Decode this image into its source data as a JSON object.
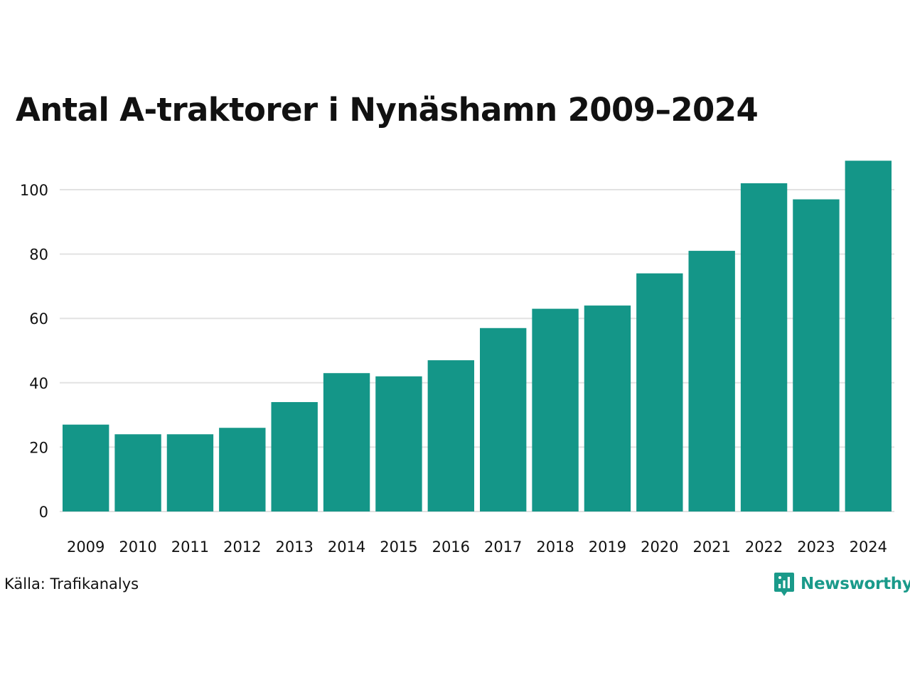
{
  "chart_data": {
    "type": "bar",
    "title": "Antal A-traktorer i Nynäshamn 2009–2024",
    "categories": [
      "2009",
      "2010",
      "2011",
      "2012",
      "2013",
      "2014",
      "2015",
      "2016",
      "2017",
      "2018",
      "2019",
      "2020",
      "2021",
      "2022",
      "2023",
      "2024"
    ],
    "values": [
      27,
      24,
      24,
      26,
      34,
      43,
      42,
      47,
      57,
      63,
      64,
      74,
      81,
      102,
      97,
      109
    ],
    "xlabel": "",
    "ylabel": "",
    "ylim": [
      0,
      110
    ],
    "yticks": [
      "0",
      "20",
      "40",
      "60",
      "80",
      "100"
    ],
    "grid": true,
    "legend": "none",
    "bar_color": "#149688"
  },
  "source": {
    "text": "Källa: Trafikanalys"
  },
  "brand": {
    "name": "Newsworthy",
    "icon": "newsworthy-logo-icon",
    "color": "#1a9a8a"
  },
  "colors": {
    "bar": "#149688",
    "grid": "#e2e2e2",
    "text": "#111111"
  }
}
